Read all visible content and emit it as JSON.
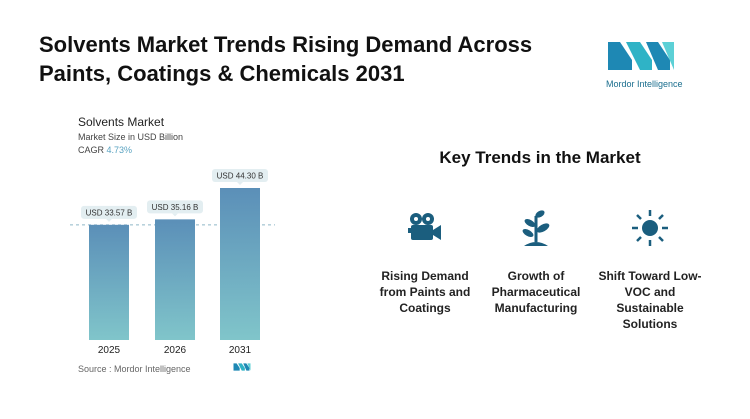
{
  "title": "Solvents Market Trends Rising Demand Across Paints, Coatings & Chemicals 2031",
  "logo_text": "Mordor Intelligence",
  "chart_data": {
    "type": "bar",
    "title": "Solvents Market",
    "subtitle": "Market Size in USD Billion",
    "cagr_label": "CAGR",
    "cagr_value": "4.73%",
    "categories": [
      "2025",
      "2026",
      "2031"
    ],
    "values": [
      33.57,
      35.16,
      44.3
    ],
    "data_labels": [
      "USD 33.57 B",
      "USD 35.16 B",
      "USD 44.30 B"
    ],
    "ylim": [
      0,
      44.3
    ],
    "reference_line": 33.57,
    "colors": {
      "bar_top": "#5b8fb8",
      "bar_bottom": "#7fc4c9",
      "cagr": "#5aa3c1"
    }
  },
  "source": "Source :  Mordor Intelligence",
  "key_trends": {
    "title": "Key Trends in the Market",
    "icon_color": "#1b5e7e",
    "items": [
      {
        "label": "Rising Demand from Paints and Coatings",
        "icon": "film-camera-icon"
      },
      {
        "label": "Growth of Pharmaceutical Manufacturing",
        "icon": "plant-icon"
      },
      {
        "label": "Shift Toward Low-VOC and Sustainable Solutions",
        "icon": "sun-icon"
      }
    ]
  }
}
